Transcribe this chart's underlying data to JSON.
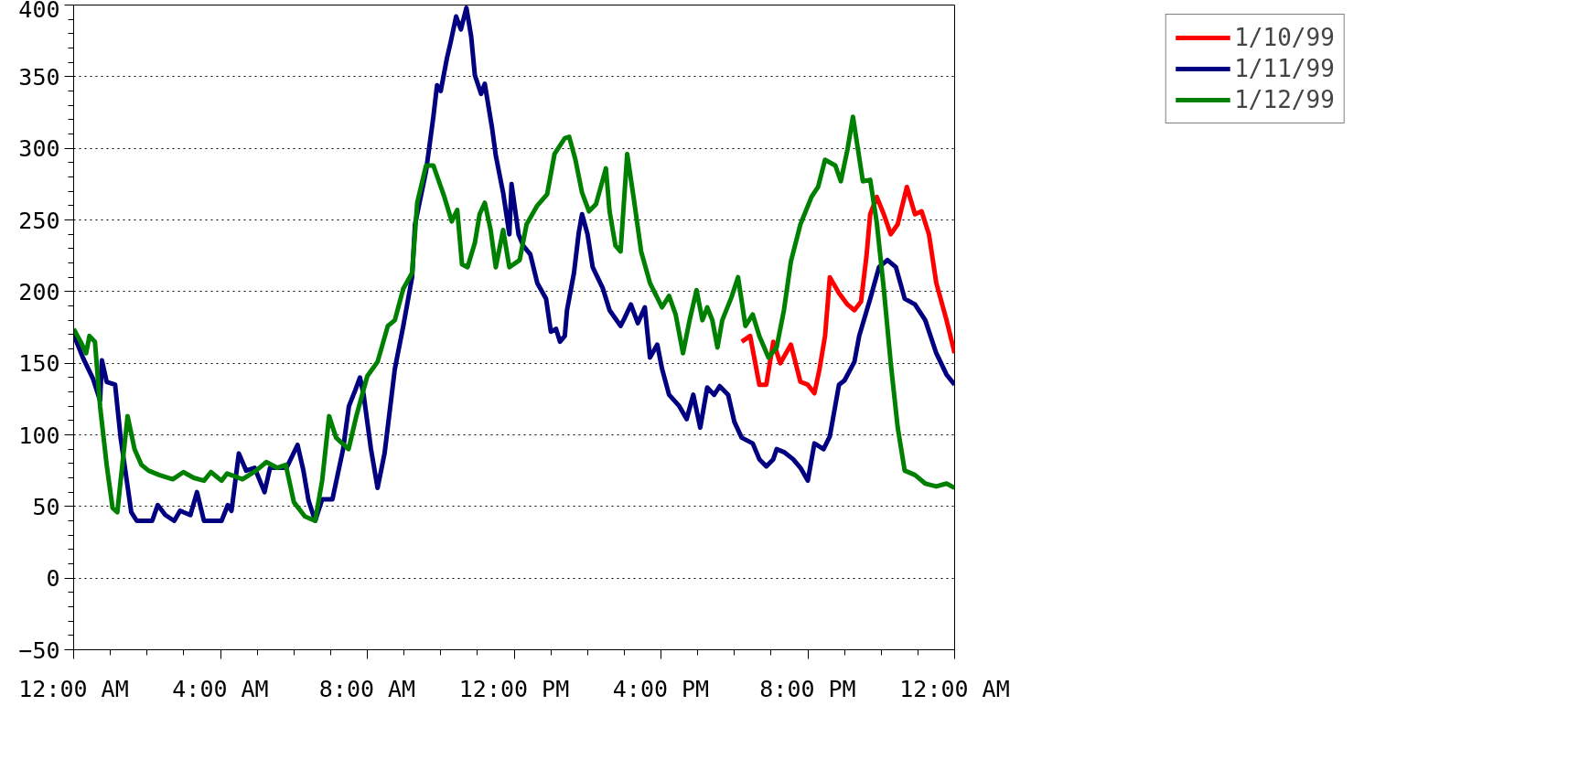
{
  "chart_data": {
    "type": "line",
    "xlim": [
      0,
      24
    ],
    "xticks": [
      {
        "value": 0,
        "label": "12:00 AM"
      },
      {
        "value": 4,
        "label": "4:00 AM"
      },
      {
        "value": 8,
        "label": "8:00 AM"
      },
      {
        "value": 12,
        "label": "12:00 PM"
      },
      {
        "value": 16,
        "label": "4:00 PM"
      },
      {
        "value": 20,
        "label": "8:00 PM"
      },
      {
        "value": 24,
        "label": "12:00 AM"
      }
    ],
    "ylim": [
      -50,
      400
    ],
    "yticks": [
      -50,
      0,
      50,
      100,
      150,
      200,
      250,
      300,
      350,
      400
    ],
    "grid": "y",
    "legend": "top right",
    "marker": "none",
    "line_style": "solid",
    "series": [
      {
        "name": "1/10/99",
        "color": "#ff0000",
        "x": [
          18.2,
          18.43,
          18.68,
          18.87,
          19.06,
          19.25,
          19.54,
          19.8,
          20.0,
          20.18,
          20.32,
          20.47,
          20.6,
          20.85,
          21.08,
          21.27,
          21.45,
          21.6,
          21.7,
          21.88,
          22.07,
          22.26,
          22.45,
          22.7,
          22.92,
          23.1,
          23.3,
          23.5,
          23.78,
          24
        ],
        "values": [
          165,
          169,
          135,
          135,
          165,
          150,
          163,
          137,
          135,
          129,
          146,
          169,
          210,
          199,
          191,
          187,
          193,
          225,
          254,
          266,
          254,
          240,
          247,
          273,
          254,
          256,
          240,
          206,
          180,
          157
        ]
      },
      {
        "name": "1/11/99",
        "color": "#000080",
        "x": [
          0,
          0.25,
          0.53,
          0.72,
          0.77,
          0.9,
          1.13,
          1.28,
          1.57,
          1.72,
          2.14,
          2.29,
          2.5,
          2.74,
          2.9,
          3.18,
          3.36,
          3.55,
          4.03,
          4.2,
          4.3,
          4.5,
          4.7,
          4.93,
          5.2,
          5.35,
          5.8,
          6.1,
          6.26,
          6.4,
          6.58,
          6.77,
          7.05,
          7.34,
          7.5,
          7.67,
          7.8,
          7.9,
          8.1,
          8.28,
          8.47,
          8.75,
          8.98,
          9.22,
          9.3,
          9.6,
          9.8,
          9.9,
          10.0,
          10.17,
          10.27,
          10.42,
          10.55,
          10.7,
          10.83,
          10.93,
          11.1,
          11.2,
          11.4,
          11.5,
          11.7,
          11.87,
          11.93,
          12.12,
          12.25,
          12.44,
          12.63,
          12.87,
          13.0,
          13.14,
          13.25,
          13.38,
          13.44,
          13.63,
          13.76,
          13.85,
          14.0,
          14.14,
          14.42,
          14.6,
          14.9,
          15.0,
          15.18,
          15.37,
          15.56,
          15.7,
          15.9,
          16.03,
          16.22,
          16.5,
          16.7,
          16.88,
          17.07,
          17.26,
          17.45,
          17.6,
          17.83,
          18.0,
          18.2,
          18.5,
          18.68,
          18.87,
          19.06,
          19.15,
          19.35,
          19.6,
          19.8,
          20.0,
          20.18,
          20.43,
          20.6,
          20.85,
          21.0,
          21.27,
          21.4,
          21.7,
          21.94,
          22.17,
          22.4,
          22.64,
          22.92,
          23.2,
          23.5,
          23.78,
          24
        ],
        "values": [
          170,
          154,
          139,
          124,
          152,
          137,
          135,
          98,
          46,
          40,
          40,
          51,
          44,
          40,
          47,
          44,
          60,
          40,
          40,
          51,
          47,
          87,
          75,
          77,
          60,
          77,
          77,
          93,
          75,
          54,
          40,
          55,
          55,
          90,
          120,
          131,
          140,
          128,
          90,
          63,
          87,
          146,
          176,
          210,
          247,
          284,
          322,
          344,
          340,
          363,
          374,
          392,
          383,
          398,
          378,
          351,
          338,
          345,
          314,
          295,
          269,
          240,
          275,
          240,
          232,
          226,
          206,
          195,
          172,
          174,
          165,
          169,
          187,
          213,
          241,
          254,
          240,
          217,
          202,
          187,
          176,
          181,
          191,
          178,
          189,
          154,
          163,
          146,
          128,
          120,
          111,
          128,
          105,
          133,
          128,
          134,
          128,
          109,
          98,
          94,
          83,
          78,
          83,
          90,
          88,
          83,
          77,
          68,
          94,
          90,
          99,
          135,
          138,
          151,
          169,
          195,
          217,
          222,
          217,
          195,
          191,
          180,
          157,
          142,
          135
        ]
      },
      {
        "name": "1/12/99",
        "color": "#008000",
        "x": [
          0,
          0.19,
          0.34,
          0.43,
          0.58,
          0.72,
          0.9,
          1.06,
          1.19,
          1.28,
          1.47,
          1.66,
          1.85,
          2.04,
          2.33,
          2.7,
          2.99,
          3.27,
          3.55,
          3.74,
          4.03,
          4.18,
          4.6,
          4.97,
          5.25,
          5.54,
          5.78,
          6.0,
          6.3,
          6.58,
          6.77,
          6.96,
          7.15,
          7.49,
          7.7,
          8.0,
          8.28,
          8.56,
          8.75,
          8.98,
          9.22,
          9.36,
          9.6,
          9.8,
          10.1,
          10.3,
          10.45,
          10.58,
          10.73,
          10.93,
          11.06,
          11.2,
          11.36,
          11.5,
          11.7,
          11.87,
          12.15,
          12.34,
          12.63,
          12.9,
          13.1,
          13.38,
          13.5,
          13.67,
          13.85,
          14.04,
          14.23,
          14.5,
          14.6,
          14.76,
          14.9,
          15.08,
          15.27,
          15.46,
          15.7,
          16.03,
          16.22,
          16.4,
          16.6,
          16.78,
          16.97,
          17.13,
          17.26,
          17.4,
          17.54,
          17.67,
          17.92,
          18.1,
          18.3,
          18.5,
          18.68,
          18.93,
          19.15,
          19.35,
          19.54,
          19.8,
          20.1,
          20.28,
          20.47,
          20.75,
          20.9,
          21.08,
          21.23,
          21.5,
          21.7,
          21.88,
          22.07,
          22.26,
          22.45,
          22.64,
          22.92,
          23.2,
          23.5,
          23.78,
          24
        ],
        "values": [
          174,
          165,
          157,
          169,
          165,
          120,
          79,
          49,
          46,
          68,
          113,
          90,
          79,
          75,
          72,
          69,
          74,
          70,
          68,
          74,
          68,
          73,
          69,
          75,
          81,
          77,
          79,
          53,
          43,
          40,
          68,
          113,
          98,
          90,
          113,
          141,
          151,
          176,
          180,
          202,
          213,
          262,
          288,
          288,
          266,
          249,
          257,
          219,
          217,
          234,
          254,
          262,
          243,
          217,
          243,
          217,
          222,
          247,
          260,
          268,
          296,
          307,
          308,
          292,
          269,
          256,
          261,
          286,
          256,
          232,
          228,
          296,
          263,
          228,
          206,
          189,
          197,
          184,
          157,
          180,
          201,
          180,
          189,
          180,
          161,
          180,
          196,
          210,
          176,
          184,
          169,
          154,
          161,
          187,
          221,
          247,
          266,
          273,
          292,
          288,
          277,
          299,
          322,
          277,
          278,
          248,
          202,
          150,
          105,
          75,
          72,
          66,
          64,
          66,
          63
        ]
      }
    ]
  }
}
